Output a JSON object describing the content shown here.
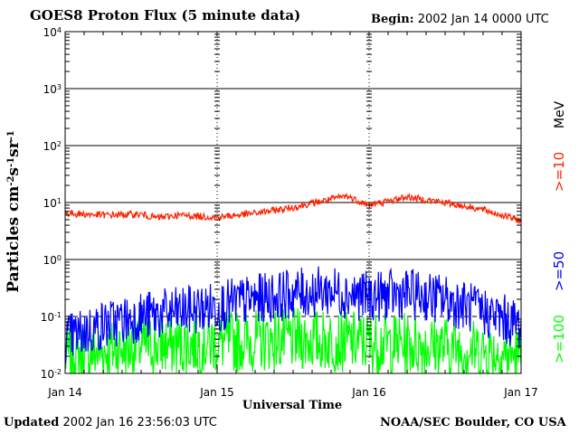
{
  "header": {
    "title": "GOES8 Proton Flux (5 minute data)",
    "begin_label": "Begin:",
    "begin_value": "2002 Jan 14 0000 UTC"
  },
  "footer": {
    "updated_label": "Updated",
    "updated_value": "2002 Jan 16 23:56:03 UTC",
    "org": "NOAA/SEC Boulder, CO USA"
  },
  "chart_data": {
    "type": "line",
    "title": "GOES8 Proton Flux (5 minute data)",
    "xlabel": "Universal Time",
    "ylabel": "Particles cm-2s-1sr-1",
    "ylabel_parts": [
      "Particles cm",
      "-2",
      "s",
      "-1",
      "sr",
      "-1"
    ],
    "yscale": "log",
    "ylim": [
      0.01,
      10000
    ],
    "xlim_days": [
      0,
      3
    ],
    "x_ticks": [
      {
        "day": 0,
        "label": "Jan 14"
      },
      {
        "day": 1,
        "label": "Jan 15"
      },
      {
        "day": 2,
        "label": "Jan 16"
      },
      {
        "day": 3,
        "label": "Jan 17"
      }
    ],
    "y_ticks": [
      {
        "value": 0.01,
        "base": "10",
        "exp": "-2"
      },
      {
        "value": 0.1,
        "base": "10",
        "exp": "-1"
      },
      {
        "value": 1,
        "base": "10",
        "exp": "0"
      },
      {
        "value": 10,
        "base": "10",
        "exp": "1"
      },
      {
        "value": 100,
        "base": "10",
        "exp": "2"
      },
      {
        "value": 1000,
        "base": "10",
        "exp": "3"
      },
      {
        "value": 10000,
        "base": "10",
        "exp": "4"
      }
    ],
    "threshold_lines": [
      10,
      0.1
    ],
    "units_label": "MeV",
    "series": [
      {
        "name": ">=10",
        "color": "#ff2200",
        "x_days": [
          0,
          0.25,
          0.5,
          0.6,
          0.75,
          1.0,
          1.25,
          1.5,
          1.75,
          1.85,
          2.0,
          2.25,
          2.5,
          2.75,
          3.0
        ],
        "values": [
          6.5,
          6.0,
          6.2,
          5.4,
          6.0,
          5.5,
          6.5,
          8.2,
          11.5,
          13.0,
          9.0,
          12.5,
          10.0,
          7.5,
          4.8
        ]
      },
      {
        "name": ">=50",
        "color": "#0000ff",
        "x_days": [
          0,
          0.25,
          0.5,
          0.75,
          1.0,
          1.25,
          1.5,
          1.75,
          2.0,
          2.25,
          2.5,
          2.75,
          3.0
        ],
        "values": [
          0.04,
          0.07,
          0.1,
          0.12,
          0.15,
          0.2,
          0.25,
          0.28,
          0.22,
          0.25,
          0.2,
          0.12,
          0.07
        ]
      },
      {
        "name": ">=100",
        "color": "#00ff00",
        "x_days": [
          0,
          0.5,
          1.0,
          1.5,
          2.0,
          2.5,
          3.0
        ],
        "values": [
          0.02,
          0.03,
          0.035,
          0.04,
          0.035,
          0.03,
          0.02
        ]
      }
    ]
  }
}
